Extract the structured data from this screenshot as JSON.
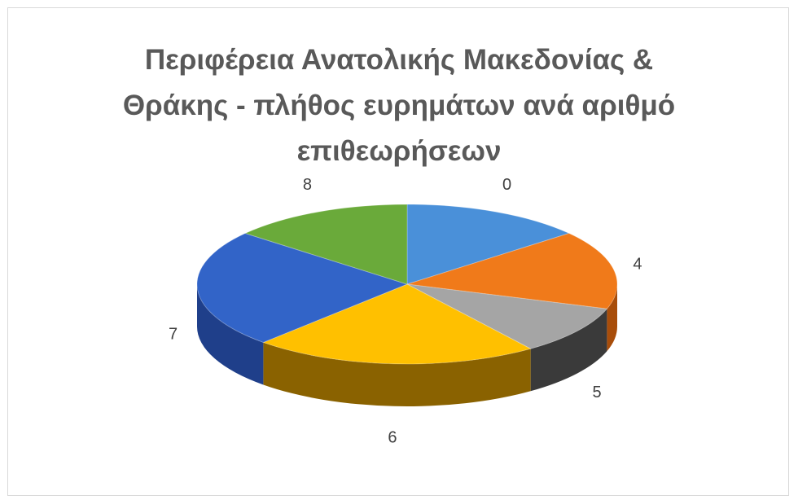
{
  "chart_data": {
    "type": "pie",
    "title_lines": [
      "Περιφέρεια Ανατολικής Μακεδονίας &",
      "Θράκης - πλήθος ευρημάτων ανά αριθμό",
      "επιθεωρήσεων"
    ],
    "categories": [
      "0",
      "4",
      "5",
      "6",
      "7",
      "8"
    ],
    "values": [
      14,
      16,
      10,
      22,
      24,
      14
    ],
    "colors": [
      "#4a90d9",
      "#f07a1a",
      "#a5a5a5",
      "#ffc000",
      "#3264c8",
      "#6aaa3a"
    ],
    "side_colors": [
      "#2b5f9e",
      "#a84d0a",
      "#3a3a3a",
      "#8a6200",
      "#1f3f8a",
      "#3f6e20"
    ],
    "legend": "none",
    "three_d": true
  }
}
